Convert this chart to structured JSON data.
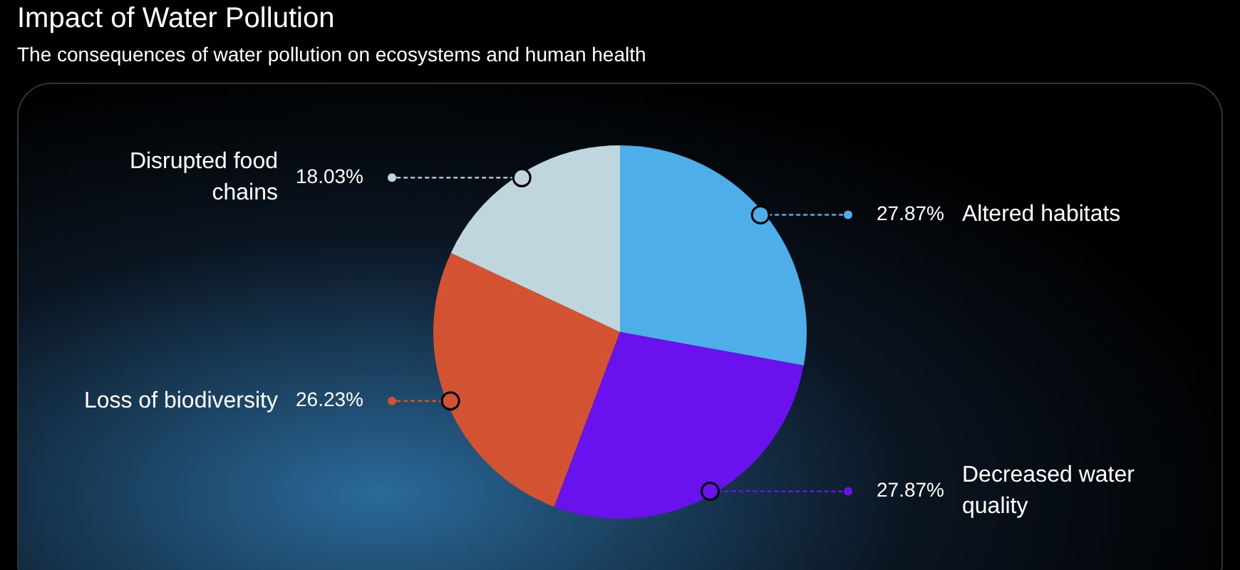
{
  "chart_data": {
    "type": "pie",
    "title": "Impact of Water Pollution",
    "subtitle": "The consequences of water pollution on ecosystems and human health",
    "categories": [
      "Altered habitats",
      "Decreased water quality",
      "Loss of biodiversity",
      "Disrupted food chains"
    ],
    "values": [
      27.87,
      27.87,
      26.23,
      18.03
    ],
    "colors": [
      "#4daeea",
      "#6a12ee",
      "#d35232",
      "#c0d6de"
    ],
    "value_labels": [
      "27.87%",
      "27.87%",
      "26.23%",
      "18.03%"
    ],
    "legend": false
  }
}
